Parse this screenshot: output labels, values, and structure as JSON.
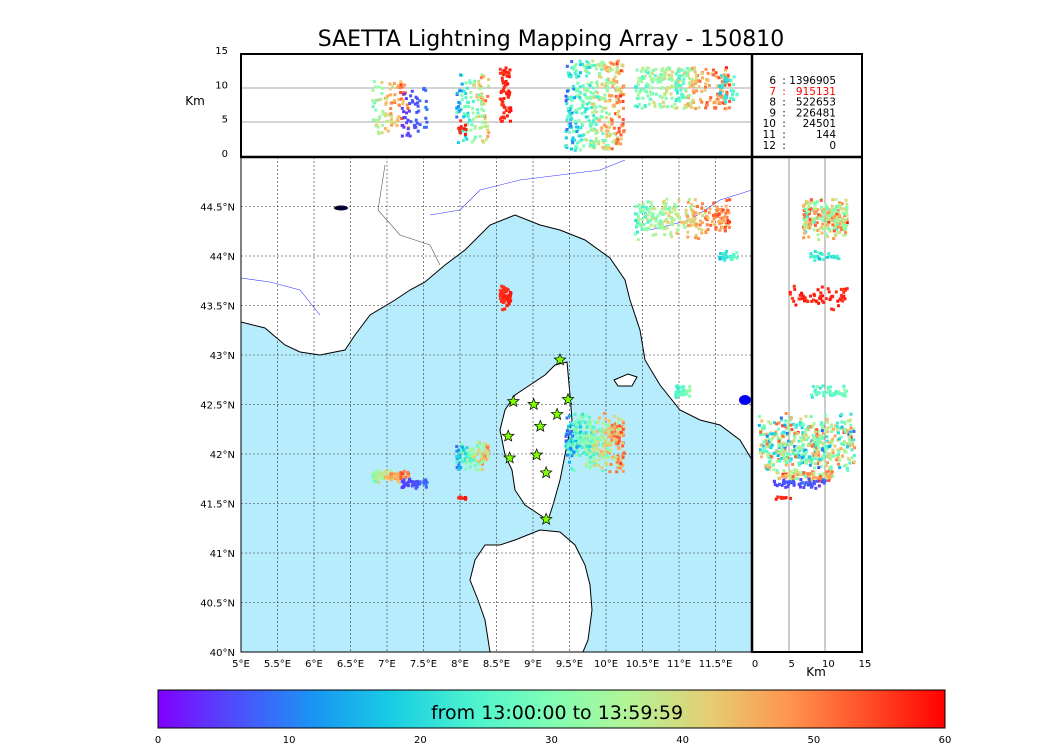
{
  "chart_data": {
    "type": "scatter",
    "title": "SAETTA Lightning Mapping Array - 150810",
    "map": {
      "xlim": [
        5,
        12
      ],
      "ylim": [
        40,
        45
      ],
      "xticks": [
        "5°E",
        "5.5°E",
        "6°E",
        "6.5°E",
        "7°E",
        "7.5°E",
        "8°E",
        "8.5°E",
        "9°E",
        "9.5°E",
        "10°E",
        "10.5°E",
        "11°E",
        "11.5°E"
      ],
      "xtick_values": [
        5,
        5.5,
        6,
        6.5,
        7,
        7.5,
        8,
        8.5,
        9,
        9.5,
        10,
        10.5,
        11,
        11.5
      ],
      "yticks": [
        "40°N",
        "40.5°N",
        "41°N",
        "41.5°N",
        "42°N",
        "42.5°N",
        "43°N",
        "43.5°N",
        "44°N",
        "44.5°N"
      ],
      "ytick_values": [
        40,
        40.5,
        41,
        41.5,
        42,
        42.5,
        43,
        43.5,
        44,
        44.5
      ],
      "grid": true
    },
    "altitude_panel": {
      "ylabel": "Km",
      "ylim": [
        0,
        15
      ],
      "yticks": [
        "0",
        "5",
        "10",
        "15"
      ],
      "ytick_values": [
        0,
        5,
        10,
        15
      ]
    },
    "latitude_altitude_panel": {
      "xlabel": "Km",
      "xlim": [
        0,
        15
      ],
      "xticks": [
        "0",
        "5",
        "10",
        "15"
      ],
      "xtick_values": [
        0,
        5,
        10,
        15
      ]
    },
    "station_counts": [
      {
        "stations": "6",
        "count": "1396905",
        "highlight": false
      },
      {
        "stations": "7",
        "count": "915131",
        "highlight": true
      },
      {
        "stations": "8",
        "count": "522653",
        "highlight": false
      },
      {
        "stations": "9",
        "count": "226481",
        "highlight": false
      },
      {
        "stations": "10",
        "count": "24501",
        "highlight": false
      },
      {
        "stations": "11",
        "count": "144",
        "highlight": false
      },
      {
        "stations": "12",
        "count": "0",
        "highlight": false
      }
    ],
    "highlight_color": "#ff0000",
    "colorbar": {
      "label": "from 13:00:00 to 13:59:59",
      "range": [
        0,
        60
      ],
      "ticks": [
        "0",
        "10",
        "20",
        "30",
        "40",
        "50",
        "60"
      ],
      "tick_values": [
        0,
        10,
        20,
        30,
        40,
        50,
        60
      ],
      "colormap": "rainbow"
    },
    "stations": [
      {
        "lon": 9.37,
        "lat": 42.95
      },
      {
        "lon": 8.73,
        "lat": 42.53
      },
      {
        "lon": 9.01,
        "lat": 42.5
      },
      {
        "lon": 9.48,
        "lat": 42.55
      },
      {
        "lon": 9.1,
        "lat": 42.28
      },
      {
        "lon": 9.33,
        "lat": 42.4
      },
      {
        "lon": 8.66,
        "lat": 42.18
      },
      {
        "lon": 8.68,
        "lat": 41.96
      },
      {
        "lon": 9.05,
        "lat": 41.99
      },
      {
        "lon": 9.18,
        "lat": 41.81
      },
      {
        "lon": 9.18,
        "lat": 41.34
      }
    ],
    "clusters": [
      {
        "lon": [
          10.4,
          11.7
        ],
        "lat": [
          44.15,
          44.6
        ],
        "alt": [
          7,
          13
        ],
        "time": [
          20,
          60
        ],
        "n": 260
      },
      {
        "lon": [
          11.55,
          11.8
        ],
        "lat": [
          43.95,
          44.05
        ],
        "alt": [
          8,
          12
        ],
        "time": [
          15,
          30
        ],
        "n": 30
      },
      {
        "lon": [
          8.55,
          8.7
        ],
        "lat": [
          43.45,
          43.7
        ],
        "alt": [
          5,
          13
        ],
        "time": [
          55,
          60
        ],
        "n": 60
      },
      {
        "lon": [
          9.45,
          10.25
        ],
        "lat": [
          41.8,
          42.45
        ],
        "alt": [
          1,
          14
        ],
        "time": [
          5,
          60
        ],
        "n": 380
      },
      {
        "lon": [
          6.8,
          7.3
        ],
        "lat": [
          41.7,
          41.85
        ],
        "alt": [
          3,
          11
        ],
        "time": [
          25,
          60
        ],
        "n": 90
      },
      {
        "lon": [
          7.2,
          7.55
        ],
        "lat": [
          41.65,
          41.75
        ],
        "alt": [
          3,
          10
        ],
        "time": [
          3,
          10
        ],
        "n": 50
      },
      {
        "lon": [
          7.95,
          8.4
        ],
        "lat": [
          41.8,
          42.15
        ],
        "alt": [
          2,
          12
        ],
        "time": [
          5,
          58
        ],
        "n": 120
      },
      {
        "lon": [
          10.95,
          11.15
        ],
        "lat": [
          42.55,
          42.7
        ],
        "alt": [
          8,
          13
        ],
        "time": [
          20,
          35
        ],
        "n": 40
      },
      {
        "lon": [
          7.98,
          8.08
        ],
        "lat": [
          41.53,
          41.58
        ],
        "alt": [
          3,
          6
        ],
        "time": [
          55,
          60
        ],
        "n": 10
      }
    ]
  }
}
